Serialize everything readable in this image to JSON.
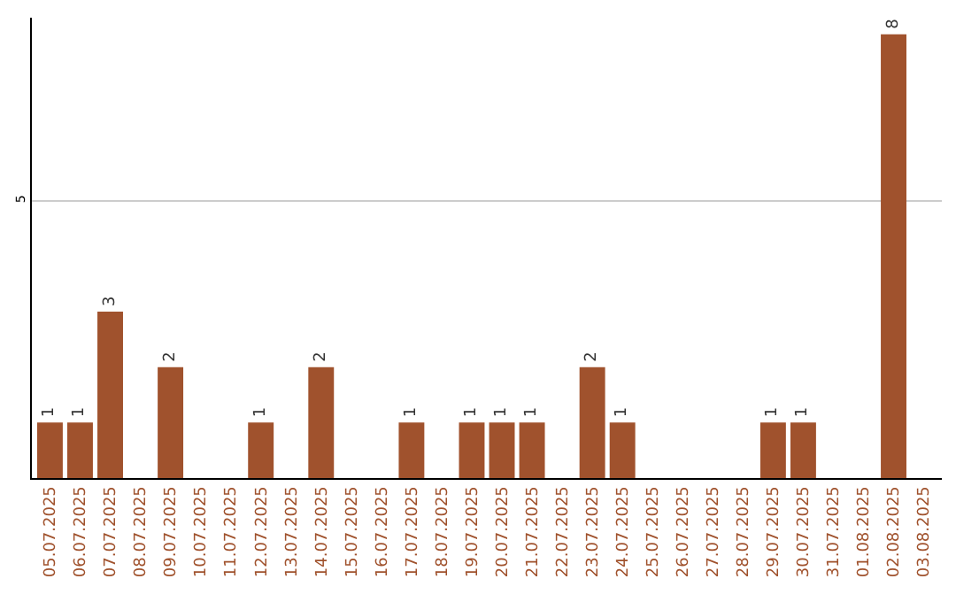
{
  "chart_data": {
    "type": "bar",
    "categories": [
      "05.07.2025",
      "06.07.2025",
      "07.07.2025",
      "08.07.2025",
      "09.07.2025",
      "10.07.2025",
      "11.07.2025",
      "12.07.2025",
      "13.07.2025",
      "14.07.2025",
      "15.07.2025",
      "16.07.2025",
      "17.07.2025",
      "18.07.2025",
      "19.07.2025",
      "20.07.2025",
      "21.07.2025",
      "22.07.2025",
      "23.07.2025",
      "24.07.2025",
      "25.07.2025",
      "26.07.2025",
      "27.07.2025",
      "28.07.2025",
      "29.07.2025",
      "30.07.2025",
      "31.07.2025",
      "01.08.2025",
      "02.08.2025",
      "03.08.2025"
    ],
    "values": [
      1,
      1,
      3,
      0,
      2,
      0,
      0,
      1,
      0,
      2,
      0,
      0,
      1,
      0,
      1,
      1,
      1,
      0,
      2,
      1,
      0,
      0,
      0,
      0,
      1,
      1,
      0,
      0,
      8,
      0
    ],
    "value_labels": [
      "1",
      "1",
      "3",
      null,
      "2",
      null,
      null,
      "1",
      null,
      "2",
      null,
      null,
      "1",
      null,
      "1",
      "1",
      "1",
      null,
      "2",
      "1",
      null,
      null,
      null,
      null,
      "1",
      "1",
      null,
      null,
      "8",
      null
    ],
    "color": "#a0522d",
    "ylim": [
      0,
      8.3
    ],
    "yticks": [
      5
    ],
    "grid": "y"
  }
}
